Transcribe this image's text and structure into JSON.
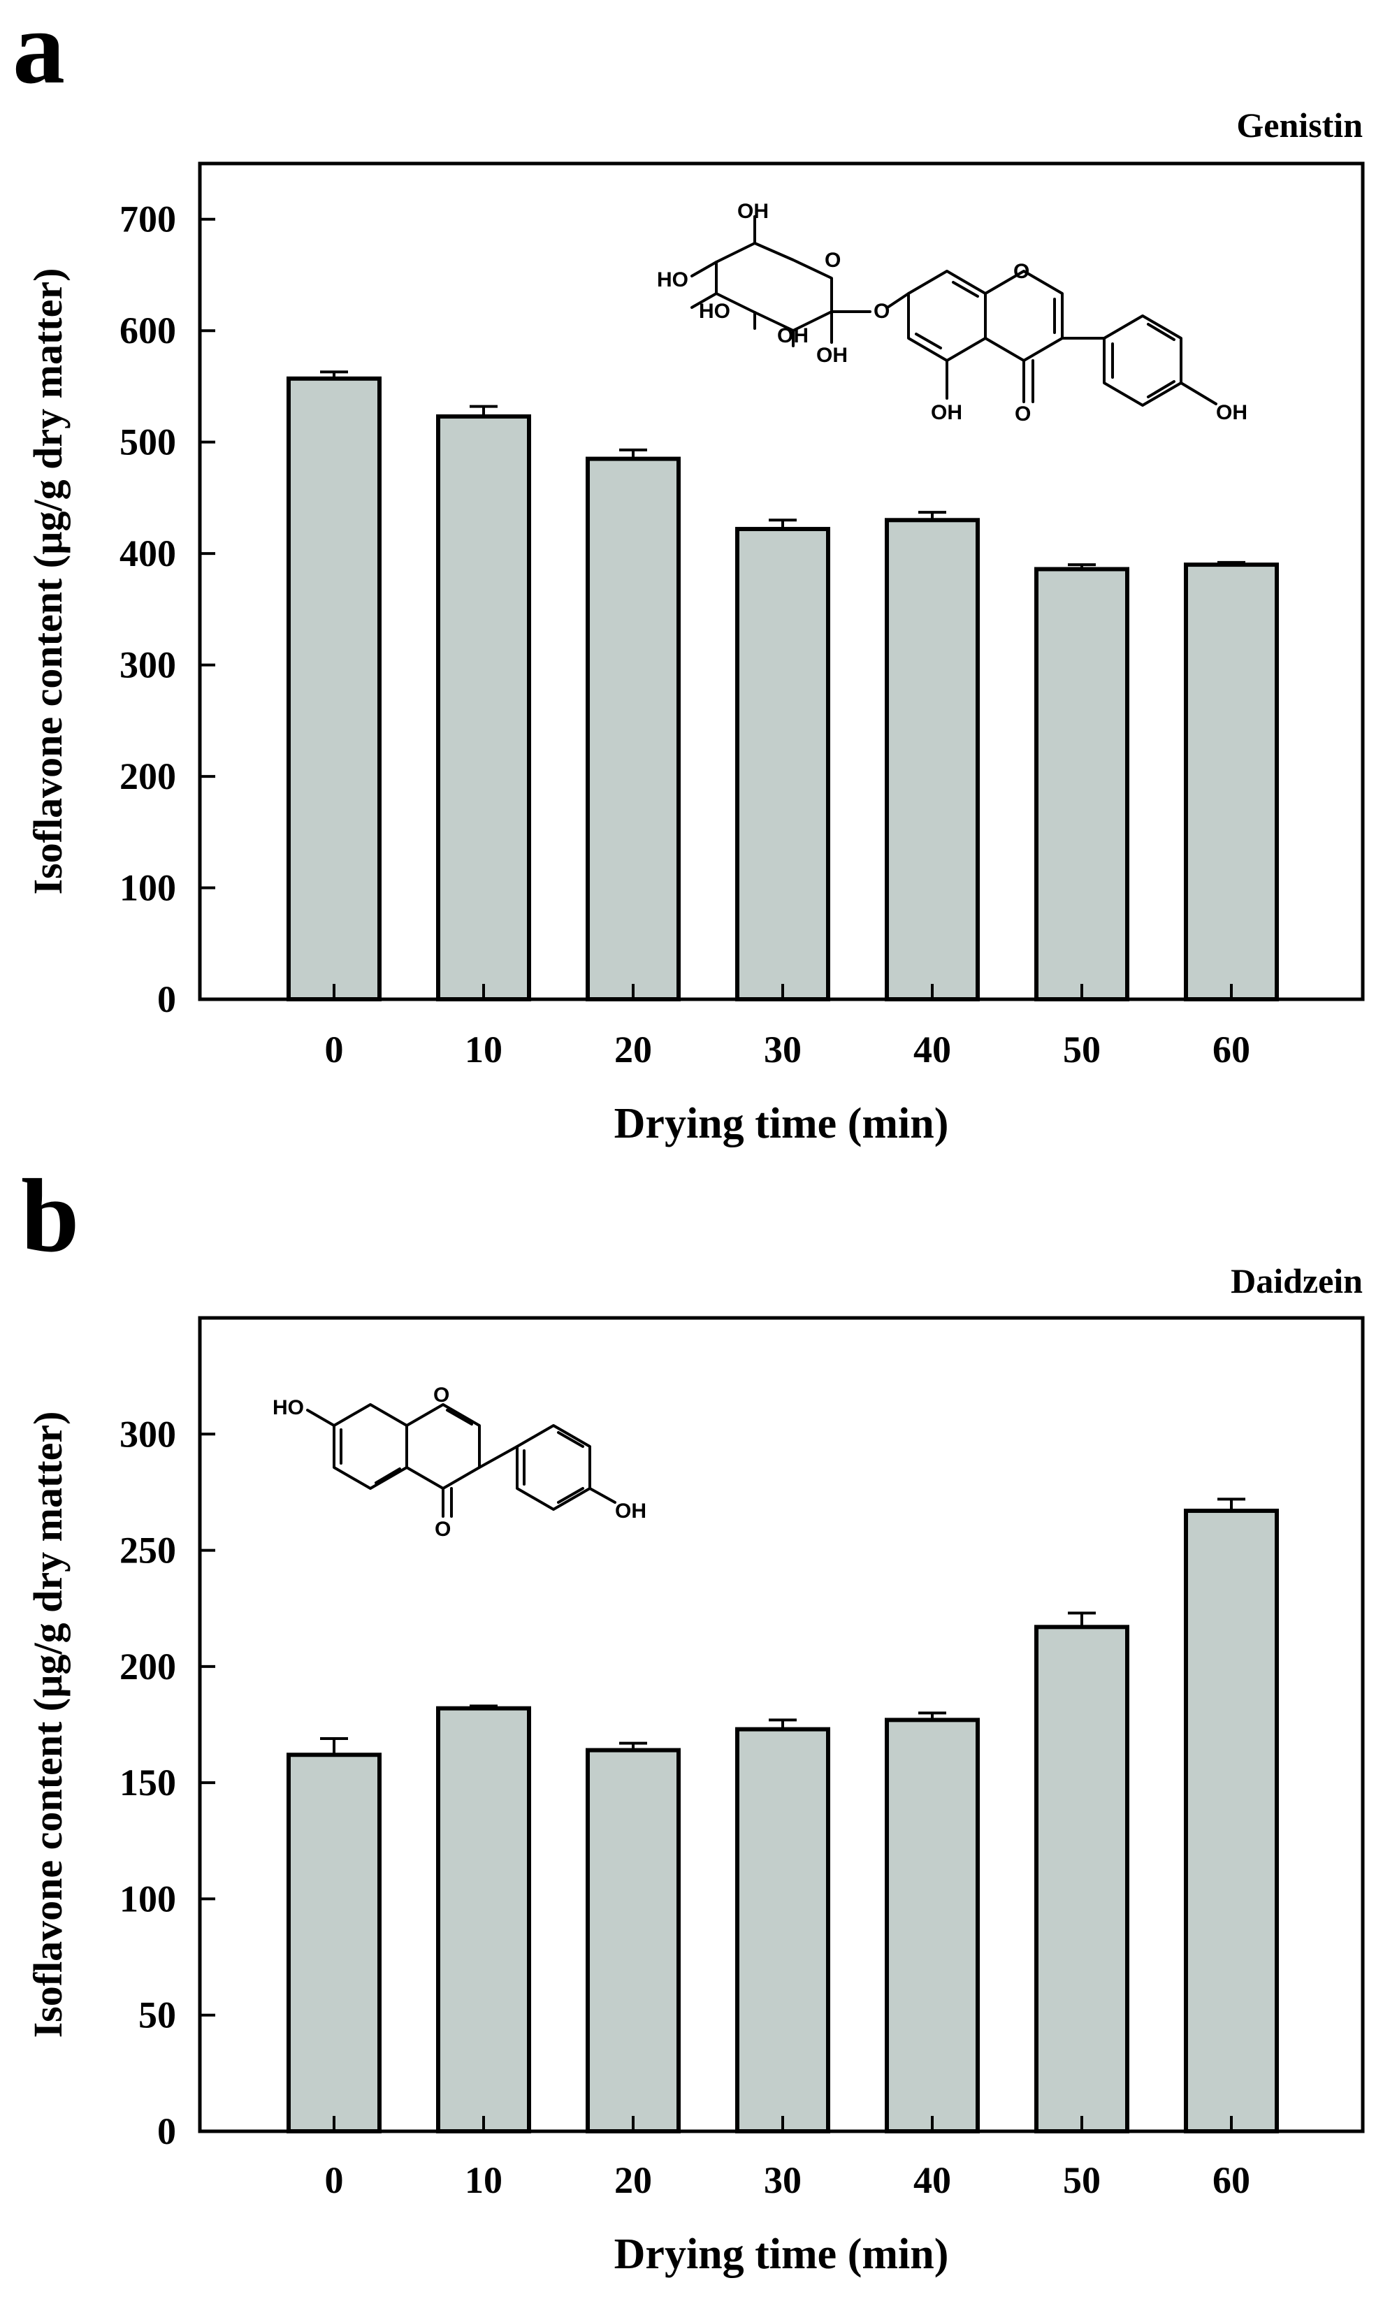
{
  "figure": {
    "panels": [
      "a",
      "b"
    ]
  },
  "style": {
    "bar_fill": "#c3cecb",
    "axis_color": "#000000",
    "background": "#ffffff"
  },
  "chart_data": [
    {
      "panel": "a",
      "type": "bar",
      "title": "Genistin",
      "categories": [
        "0",
        "10",
        "20",
        "30",
        "40",
        "50",
        "60"
      ],
      "values": [
        557,
        523,
        485,
        422,
        430,
        386,
        390
      ],
      "errors": [
        6,
        9,
        8,
        8,
        7,
        4,
        2
      ],
      "xlabel": "Drying time (min)",
      "ylabel": "Isoflavone  content (µg/g dry matter)",
      "ylim": [
        0,
        750
      ],
      "yticks": [
        0,
        100,
        200,
        300,
        400,
        500,
        600,
        700
      ],
      "structure": {
        "name": "genistin",
        "labels": [
          "OH",
          "HO",
          "HO",
          "O",
          "OH",
          "OH",
          "O",
          "O",
          "OH",
          "O",
          "OH"
        ]
      }
    },
    {
      "panel": "b",
      "type": "bar",
      "title": "Daidzein",
      "categories": [
        "0",
        "10",
        "20",
        "30",
        "40",
        "50",
        "60"
      ],
      "values": [
        162,
        182,
        164,
        173,
        177,
        217,
        267
      ],
      "errors": [
        7,
        1,
        3,
        4,
        3,
        6,
        5
      ],
      "xlabel": "Drying time (min)",
      "ylabel": "Isoflavone  content (µg/g dry matter)",
      "ylim": [
        0,
        350
      ],
      "yticks": [
        0,
        50,
        100,
        150,
        200,
        250,
        300
      ],
      "structure": {
        "name": "daidzein",
        "labels": [
          "HO",
          "O",
          "O",
          "OH"
        ]
      }
    }
  ]
}
